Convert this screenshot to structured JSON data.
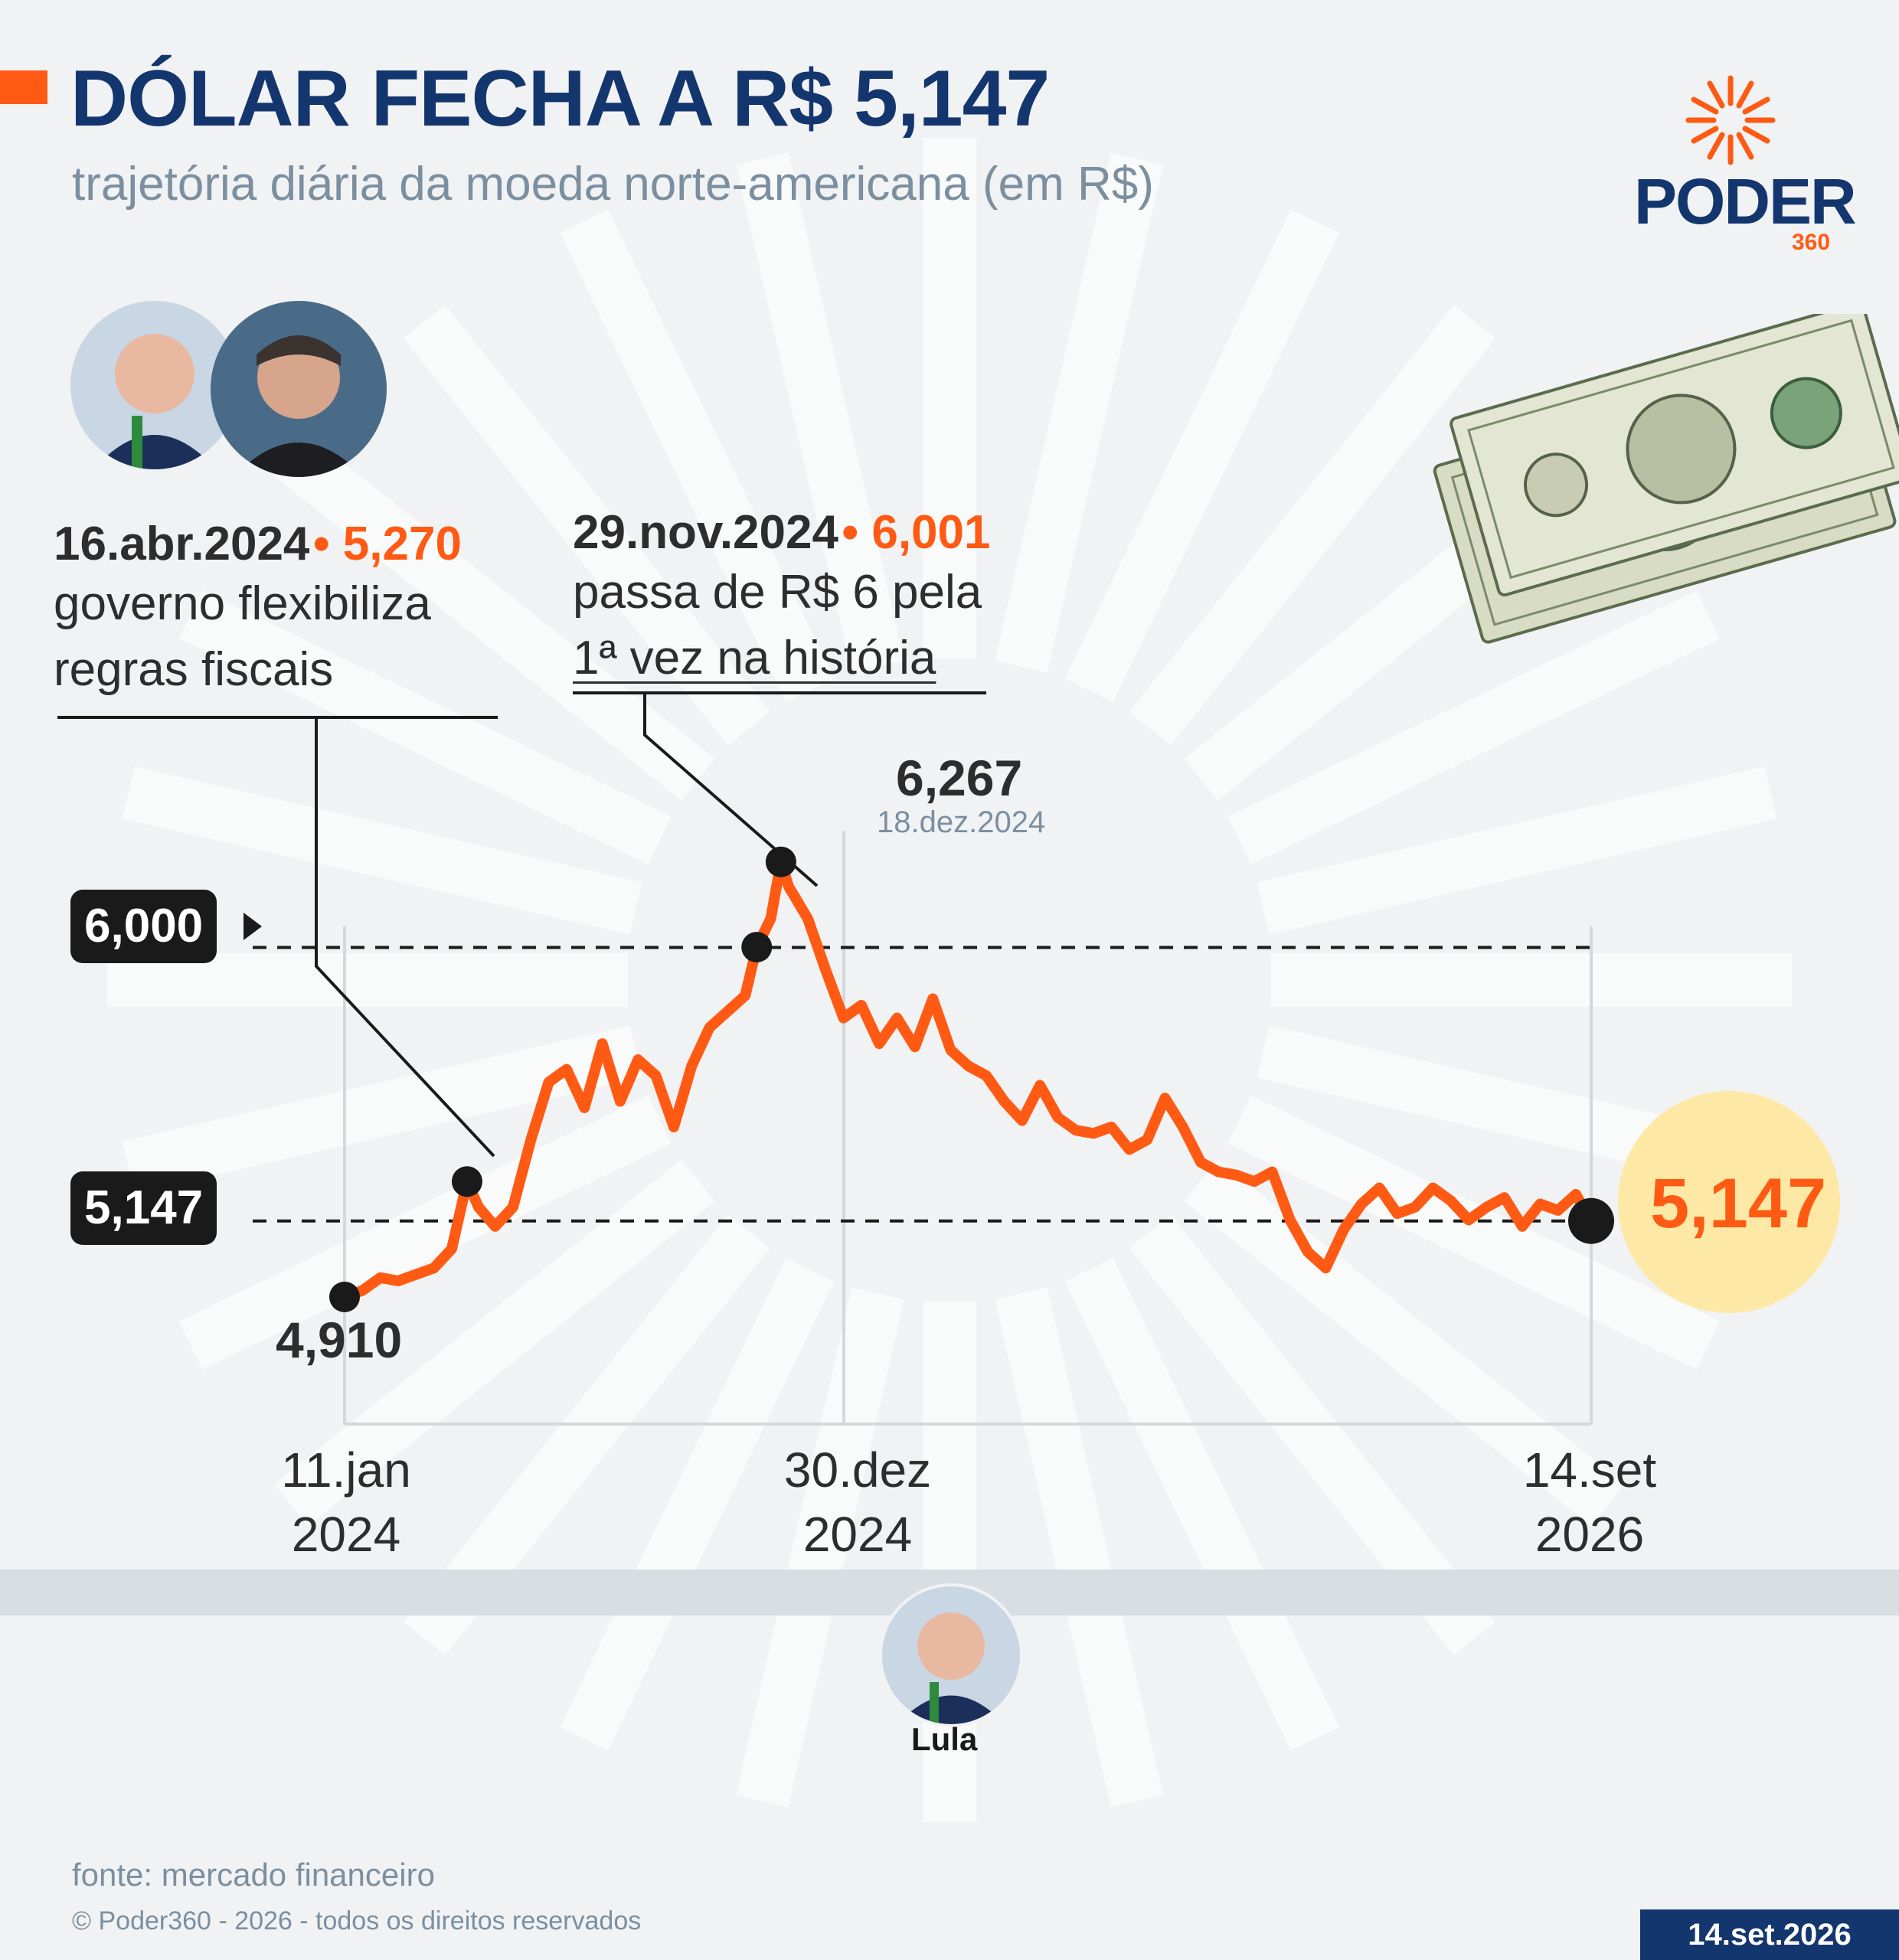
{
  "header": {
    "title": "DÓLAR FECHA A R$ 5,147",
    "subtitle": "trajetória diária da moeda norte-americana (em R$)"
  },
  "logo": {
    "word": "PODER",
    "number": "360"
  },
  "annotations": [
    {
      "date": "16.abr.2024",
      "value": "• 5,270",
      "line1": "governo flexibiliza",
      "line2": "regras fiscais"
    },
    {
      "date": "29.nov.2024",
      "value": "• 6,001",
      "line1": "passa de R$ 6 pela",
      "line2": "1ª vez na história"
    }
  ],
  "peak": {
    "value": "6,267",
    "date": "18.dez.2024"
  },
  "start": {
    "value": "4,910"
  },
  "end": {
    "value": "5,147"
  },
  "reference_tags": {
    "upper": "6,000",
    "current": "5,147"
  },
  "x_labels": [
    {
      "top": "11.jan",
      "bottom": "2024"
    },
    {
      "top": "30.dez",
      "bottom": "2024"
    },
    {
      "top": "14.set",
      "bottom": "2026"
    }
  ],
  "timeline": {
    "president": "Lula"
  },
  "footer": {
    "source": "fonte: mercado financeiro",
    "copyright": "© Poder360 - 2026 - todos os direitos reservados",
    "date": "14.set.2026"
  },
  "colors": {
    "accent": "#ff5a14",
    "navy": "#14366e",
    "highlight": "#fde9a5"
  },
  "chart_data": {
    "type": "line",
    "x_start": "2024-01-11",
    "x_end": "2026-09-14",
    "ylim": [
      4.8,
      6.4
    ],
    "reference_lines": [
      6.0,
      5.147
    ],
    "series": [
      {
        "x": [
          "2024-01-11",
          "2024-01-25",
          "2024-02-08",
          "2024-02-22",
          "2024-03-07",
          "2024-03-21",
          "2024-04-04",
          "2024-04-16",
          "2024-04-25",
          "2024-05-08",
          "2024-05-22",
          "2024-06-05",
          "2024-06-19",
          "2024-07-03",
          "2024-07-17",
          "2024-07-31",
          "2024-08-14",
          "2024-08-28",
          "2024-09-11",
          "2024-09-25",
          "2024-10-09",
          "2024-10-23",
          "2024-11-06",
          "2024-11-20",
          "2024-11-29",
          "2024-12-10",
          "2024-12-18",
          "2024-12-24",
          "2025-01-08",
          "2025-01-22",
          "2025-02-05",
          "2025-02-19",
          "2025-03-05",
          "2025-03-19",
          "2025-04-02",
          "2025-04-16",
          "2025-04-30",
          "2025-05-14",
          "2025-05-28",
          "2025-06-11",
          "2025-06-25",
          "2025-07-09",
          "2025-07-23",
          "2025-08-06",
          "2025-08-20",
          "2025-09-03",
          "2025-09-17",
          "2025-10-01",
          "2025-10-15",
          "2025-10-29",
          "2025-11-12",
          "2025-11-26",
          "2025-12-10",
          "2025-12-24",
          "2026-01-07",
          "2026-01-21",
          "2026-02-04",
          "2026-02-18",
          "2026-03-04",
          "2026-03-18",
          "2026-04-01",
          "2026-04-15",
          "2026-04-29",
          "2026-05-13",
          "2026-05-27",
          "2026-06-10",
          "2026-06-24",
          "2026-07-08",
          "2026-07-22",
          "2026-08-05",
          "2026-08-19",
          "2026-09-02",
          "2026-09-14"
        ],
        "values": [
          4.91,
          4.93,
          4.97,
          4.96,
          4.98,
          5.0,
          5.06,
          5.27,
          5.19,
          5.13,
          5.19,
          5.4,
          5.58,
          5.62,
          5.5,
          5.7,
          5.52,
          5.65,
          5.6,
          5.44,
          5.63,
          5.75,
          5.8,
          5.85,
          6.001,
          6.09,
          6.267,
          6.19,
          6.09,
          5.93,
          5.78,
          5.82,
          5.7,
          5.78,
          5.69,
          5.84,
          5.68,
          5.63,
          5.6,
          5.52,
          5.46,
          5.57,
          5.47,
          5.43,
          5.42,
          5.44,
          5.37,
          5.4,
          5.53,
          5.44,
          5.33,
          5.3,
          5.29,
          5.27,
          5.3,
          5.15,
          5.05,
          5.0,
          5.12,
          5.2,
          5.25,
          5.17,
          5.19,
          5.25,
          5.21,
          5.15,
          5.19,
          5.22,
          5.13,
          5.2,
          5.18,
          5.23,
          5.147
        ]
      }
    ]
  }
}
